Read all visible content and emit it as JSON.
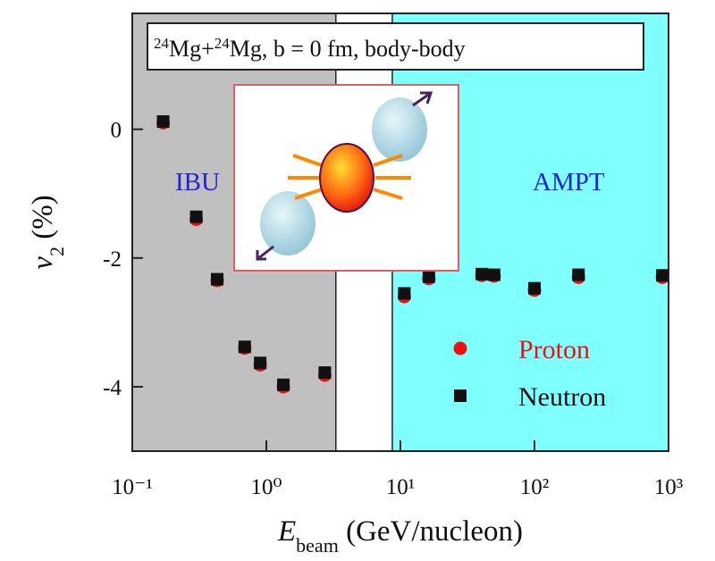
{
  "chart_data": {
    "type": "scatter",
    "annotation_parts": [
      "24",
      "Mg+",
      "24",
      "Mg, b = 0 fm,  body-body"
    ],
    "region_labels": [
      "IBU",
      "AMPT"
    ],
    "x_label": [
      "E",
      "beam",
      " (GeV/nucleon)"
    ],
    "y_label": [
      "v",
      "2",
      " (%)"
    ],
    "log_x": true,
    "xlim": [
      0.1,
      1000
    ],
    "ylim": [
      -5,
      1.8
    ],
    "xticks": [
      {
        "value": 0.1,
        "label": "10⁻¹"
      },
      {
        "value": 1,
        "label": "10⁰"
      },
      {
        "value": 10,
        "label": "10¹"
      },
      {
        "value": 100,
        "label": "10²"
      },
      {
        "value": 1000,
        "label": "10³"
      }
    ],
    "yticks": [
      0,
      -2,
      -4
    ],
    "regions": [
      {
        "xlim": [
          0.1,
          3.3
        ],
        "color": "#c0c0c0"
      },
      {
        "xlim": [
          8.7,
          1000
        ],
        "color": "#80ffff"
      }
    ],
    "legend": "lower right",
    "series": [
      {
        "name": "Proton",
        "color": "#ee1111",
        "marker": "circle",
        "x": [
          0.17,
          0.3,
          0.43,
          0.69,
          0.9,
          1.34,
          2.73,
          10.7,
          16.3,
          40.5,
          50,
          100,
          213,
          900
        ],
        "values": [
          0.1,
          -1.4,
          -2.35,
          -3.4,
          -3.66,
          -4.0,
          -3.82,
          -2.6,
          -2.32,
          -2.27,
          -2.28,
          -2.5,
          -2.3,
          -2.3
        ]
      },
      {
        "name": "Neutron",
        "color": "#111111",
        "marker": "square",
        "x": [
          0.17,
          0.3,
          0.43,
          0.69,
          0.9,
          1.34,
          2.73,
          10.7,
          16.3,
          40.5,
          50,
          100,
          213,
          900
        ],
        "values": [
          0.12,
          -1.36,
          -2.33,
          -3.38,
          -3.63,
          -3.97,
          -3.78,
          -2.55,
          -2.29,
          -2.25,
          -2.26,
          -2.47,
          -2.26,
          -2.27
        ]
      }
    ]
  }
}
